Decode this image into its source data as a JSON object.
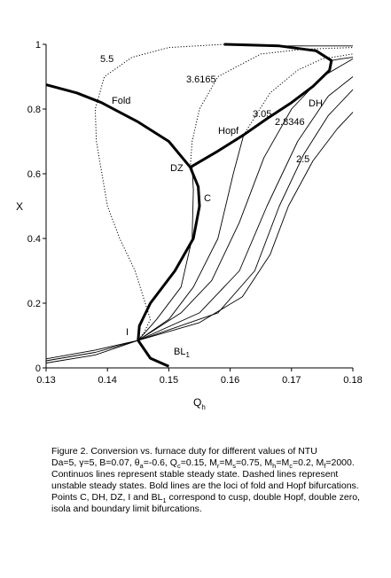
{
  "chart_data": {
    "type": "line",
    "color": "#000000",
    "ylabel": "X",
    "xlabel": "Q",
    "xlabel_sub": "h",
    "xlim": [
      0.13,
      0.18
    ],
    "xticks": [
      0.13,
      0.14,
      0.15,
      0.16,
      0.17,
      0.18
    ],
    "ylim": [
      0,
      1
    ],
    "yticks": [
      0,
      0.2,
      0.4,
      0.6,
      0.8,
      1
    ],
    "series": [
      {
        "style": "dotted",
        "x": [
          0.159,
          0.15,
          0.144,
          0.1395,
          0.138,
          0.1382,
          0.14,
          0.142,
          0.1445,
          0.147,
          0.146,
          0.145
        ],
        "values": [
          1.0,
          0.99,
          0.96,
          0.9,
          0.8,
          0.7,
          0.5,
          0.4,
          0.3,
          0.15,
          0.11,
          0.085
        ]
      },
      {
        "style": "dotted",
        "x": [
          0.1535,
          0.1538,
          0.155,
          0.158,
          0.165,
          0.172,
          0.18
        ],
        "values": [
          0.62,
          0.7,
          0.8,
          0.9,
          0.97,
          0.985,
          0.99
        ]
      },
      {
        "style": "solid",
        "x": [
          0.145,
          0.148,
          0.152,
          0.1538,
          0.154,
          0.1538
        ],
        "values": [
          0.085,
          0.15,
          0.25,
          0.4,
          0.55,
          0.62
        ]
      },
      {
        "style": "dotted",
        "x": [
          0.1622,
          0.1665,
          0.171,
          0.175,
          0.18
        ],
        "values": [
          0.72,
          0.85,
          0.92,
          0.955,
          0.97
        ]
      },
      {
        "style": "solid",
        "x": [
          0.145,
          0.15,
          0.154,
          0.158,
          0.1605,
          0.1622
        ],
        "values": [
          0.085,
          0.15,
          0.25,
          0.4,
          0.6,
          0.72
        ]
      },
      {
        "style": "solid",
        "x": [
          0.145,
          0.152,
          0.157,
          0.1615,
          0.1655,
          0.17,
          0.175,
          0.18
        ],
        "values": [
          0.085,
          0.17,
          0.27,
          0.45,
          0.65,
          0.8,
          0.9,
          0.955
        ]
      },
      {
        "style": "solid",
        "x": [
          0.145,
          0.155,
          0.1615,
          0.166,
          0.171,
          0.176,
          0.18
        ],
        "values": [
          0.085,
          0.17,
          0.3,
          0.5,
          0.7,
          0.84,
          0.9
        ]
      },
      {
        "style": "solid",
        "x": [
          0.145,
          0.158,
          0.164,
          0.168,
          0.172,
          0.176,
          0.18
        ],
        "values": [
          0.085,
          0.17,
          0.3,
          0.5,
          0.66,
          0.78,
          0.86
        ]
      },
      {
        "style": "solid",
        "x": [
          0.145,
          0.155,
          0.162,
          0.1665,
          0.1695,
          0.1735,
          0.1775,
          0.18
        ],
        "values": [
          0.085,
          0.14,
          0.22,
          0.35,
          0.5,
          0.64,
          0.74,
          0.79
        ]
      },
      {
        "style": "solid",
        "x": [
          0.13,
          0.138,
          0.145
        ],
        "values": [
          0.015,
          0.04,
          0.085
        ]
      },
      {
        "style": "solid",
        "x": [
          0.13,
          0.138,
          0.145
        ],
        "values": [
          0.022,
          0.048,
          0.085
        ]
      },
      {
        "style": "solid",
        "x": [
          0.13,
          0.138,
          0.145
        ],
        "values": [
          0.028,
          0.055,
          0.085
        ]
      },
      {
        "style": "solid",
        "x": [
          0.1765,
          0.178,
          0.18
        ],
        "values": [
          0.95,
          0.955,
          0.96
        ]
      },
      {
        "style": "solid",
        "x": [
          0.168,
          0.174,
          0.18
        ],
        "values": [
          0.995,
          0.995,
          0.995
        ]
      },
      {
        "style": "bold",
        "x": [
          0.13,
          0.135,
          0.139,
          0.145,
          0.15,
          0.1535,
          0.1548,
          0.155,
          0.154,
          0.151,
          0.147,
          0.1452,
          0.145,
          0.147,
          0.15
        ],
        "values": [
          0.875,
          0.85,
          0.82,
          0.76,
          0.7,
          0.62,
          0.56,
          0.5,
          0.4,
          0.3,
          0.2,
          0.13,
          0.085,
          0.03,
          0.005
        ]
      },
      {
        "style": "bold",
        "x": [
          0.1535,
          0.158,
          0.1622,
          0.166,
          0.17,
          0.1735,
          0.1762,
          0.1765,
          0.174,
          0.168,
          0.159
        ],
        "values": [
          0.62,
          0.67,
          0.72,
          0.77,
          0.82,
          0.87,
          0.92,
          0.95,
          0.98,
          0.995,
          1.0
        ]
      }
    ],
    "annotations": [
      "5.5",
      "3.6165",
      "3.05",
      "DH",
      "2.8346",
      "2.5",
      "Fold",
      "Hopf",
      "DZ",
      "C",
      "I"
    ],
    "bl_label": "BL",
    "bl_sub": "1",
    "caption": [
      [
        "Figure 2. Conversion vs. furnace duty for different values of NTU"
      ],
      [
        "Da=5, γ=5, B=0.07, θ",
        "a",
        "=-0.6, Q",
        "c",
        "=0.15, M",
        "r",
        "=M",
        "s",
        "=0.75, M",
        "h",
        "=M",
        "c",
        "=0.2, M",
        "f",
        "=2000."
      ],
      [
        "Continuos lines represent stable steady state. Dashed lines represent"
      ],
      [
        "unstable steady states. Bold lines are the loci of fold and Hopf bifurcations."
      ],
      [
        "Points C, DH, DZ, I and BL",
        "1",
        " correspond to cusp, double Hopf, double zero,"
      ],
      [
        "isola and boundary limit bifurcations."
      ]
    ]
  }
}
